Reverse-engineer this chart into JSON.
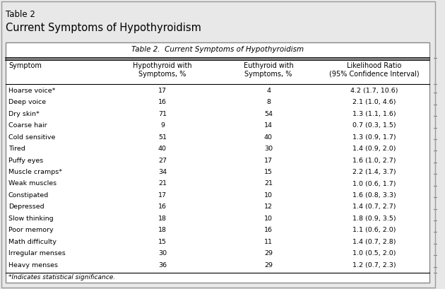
{
  "outer_title_line1": "Table 2",
  "outer_title_line2": "Current Symptoms of Hypothyroidism",
  "table_title": "Table 2.  Current Symptoms of Hypothyroidism",
  "col_headers": [
    "Symptom",
    "Hypothyroid with\nSymptoms, %",
    "Euthyroid with\nSymptoms, %",
    "Likelihood Ratio\n(95% Confidence Interval)"
  ],
  "rows": [
    [
      "Hoarse voice*",
      "17",
      "4",
      "4.2 (1.7, 10.6)"
    ],
    [
      "Deep voice",
      "16",
      "8",
      "2.1 (1.0, 4.6)"
    ],
    [
      "Dry skin*",
      "71",
      "54",
      "1.3 (1.1, 1.6)"
    ],
    [
      "Coarse hair",
      "9",
      "14",
      "0.7 (0.3, 1.5)"
    ],
    [
      "Cold sensitive",
      "51",
      "40",
      "1.3 (0.9, 1.7)"
    ],
    [
      "Tired",
      "40",
      "30",
      "1.4 (0.9, 2.0)"
    ],
    [
      "Puffy eyes",
      "27",
      "17",
      "1.6 (1.0, 2.7)"
    ],
    [
      "Muscle cramps*",
      "34",
      "15",
      "2.2 (1.4, 3.7)"
    ],
    [
      "Weak muscles",
      "21",
      "21",
      "1.0 (0.6, 1.7)"
    ],
    [
      "Constipated",
      "17",
      "10",
      "1.6 (0.8, 3.3)"
    ],
    [
      "Depressed",
      "16",
      "12",
      "1.4 (0.7, 2.7)"
    ],
    [
      "Slow thinking",
      "18",
      "10",
      "1.8 (0.9, 3.5)"
    ],
    [
      "Poor memory",
      "18",
      "16",
      "1.1 (0.6, 2.0)"
    ],
    [
      "Math difficulty",
      "15",
      "11",
      "1.4 (0.7, 2.8)"
    ],
    [
      "Irregular menses",
      "30",
      "29",
      "1.0 (0.5, 2.0)"
    ],
    [
      "Heavy menses",
      "36",
      "29",
      "1.2 (0.7, 2.3)"
    ]
  ],
  "footnote": "*Indicates statistical significance.",
  "bg_color": "#e8e8e8",
  "table_bg": "#ffffff",
  "border_color": "#888888",
  "text_color": "#000000",
  "title1_fontsize": 8.5,
  "title2_fontsize": 10.5,
  "table_title_fontsize": 7.5,
  "header_fontsize": 7.0,
  "data_fontsize": 6.8,
  "footnote_fontsize": 6.5
}
